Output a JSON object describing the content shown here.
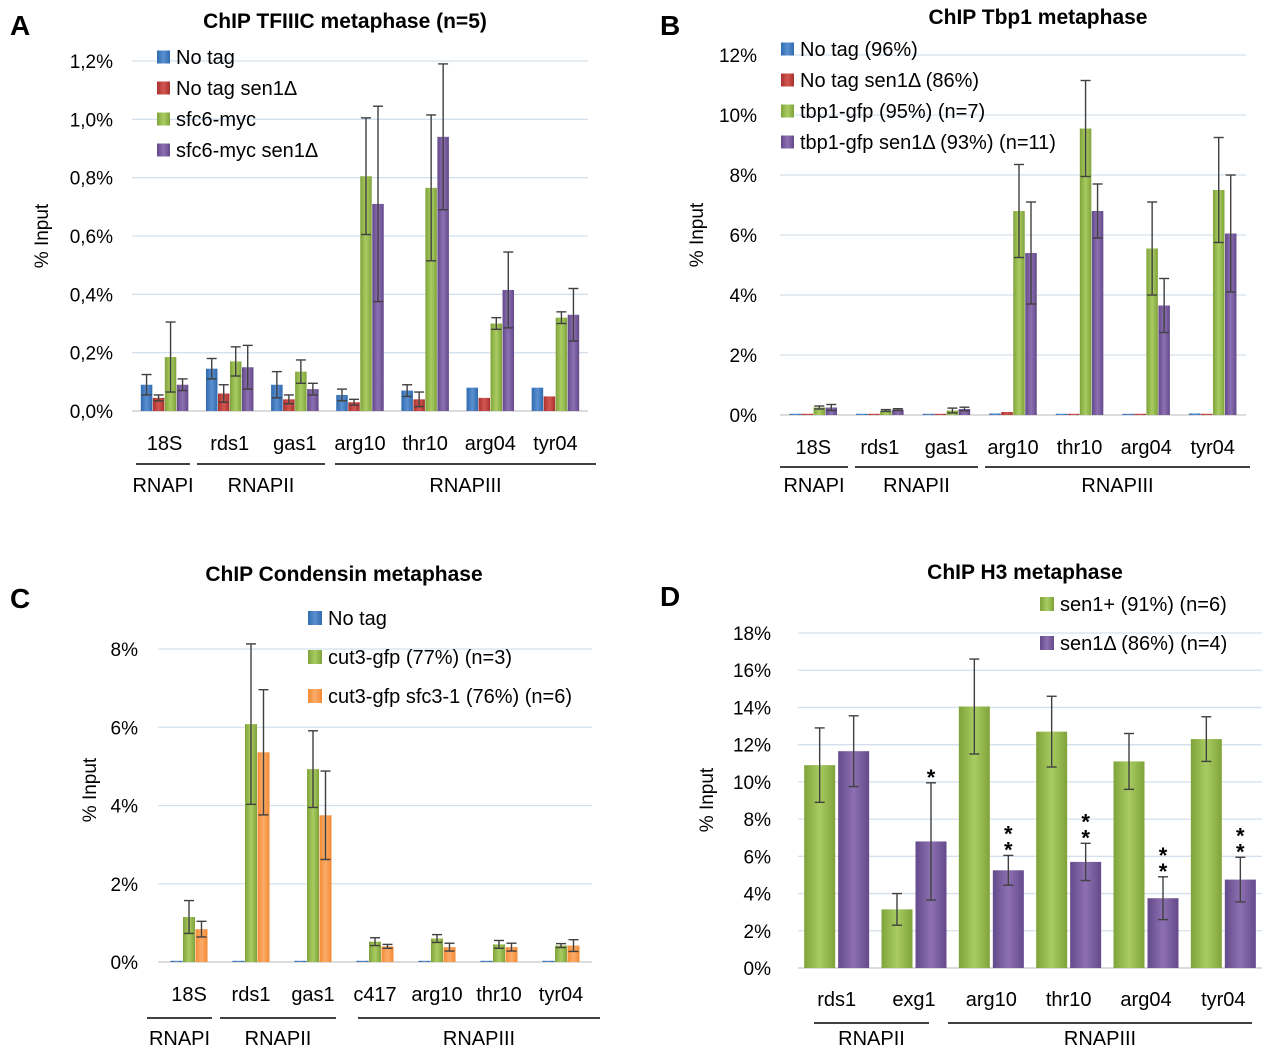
{
  "chart_data": [
    {
      "panel": "A",
      "type": "bar",
      "title": "ChIP TFIIIC metaphase (n=5)",
      "ylabel": "% Input",
      "ylim": [
        0,
        1.2
      ],
      "yticks": [
        "0,0%",
        "0,2%",
        "0,4%",
        "0,6%",
        "0,8%",
        "1,0%",
        "1,2%"
      ],
      "grid": true,
      "legend_position": "top-left",
      "categories": [
        "18S",
        "rds1",
        "gas1",
        "arg10",
        "thr10",
        "arg04",
        "tyr04"
      ],
      "groups": [
        {
          "label": "RNAPI",
          "from": 0,
          "to": 0
        },
        {
          "label": "RNAPII",
          "from": 1,
          "to": 2
        },
        {
          "label": "RNAPIII",
          "from": 3,
          "to": 6
        }
      ],
      "series": [
        {
          "name": "No tag",
          "color": "#4a7ebb",
          "values": [
            0.09,
            0.145,
            0.09,
            0.055,
            0.07,
            0.08,
            0.08
          ],
          "errors": [
            0.035,
            0.035,
            0.045,
            0.02,
            0.02,
            0.0,
            0.0
          ]
        },
        {
          "name": "No tag sen1Δ",
          "color": "#be4b48",
          "values": [
            0.045,
            0.06,
            0.04,
            0.03,
            0.04,
            0.045,
            0.05
          ],
          "errors": [
            0.01,
            0.03,
            0.015,
            0.01,
            0.025,
            0.0,
            0.0
          ]
        },
        {
          "name": "sfc6-myc",
          "color": "#98b954",
          "values": [
            0.185,
            0.17,
            0.135,
            0.805,
            0.765,
            0.3,
            0.32
          ],
          "errors": [
            0.12,
            0.05,
            0.04,
            0.2,
            0.25,
            0.02,
            0.02
          ]
        },
        {
          "name": "sfc6-myc sen1Δ",
          "color": "#7d60a0",
          "values": [
            0.09,
            0.15,
            0.075,
            0.71,
            0.94,
            0.415,
            0.33
          ],
          "errors": [
            0.02,
            0.075,
            0.02,
            0.335,
            0.25,
            0.13,
            0.09
          ]
        }
      ]
    },
    {
      "panel": "B",
      "type": "bar",
      "title": "ChIP Tbp1 metaphase",
      "ylabel": "% Input",
      "ylim": [
        0,
        12
      ],
      "yticks": [
        "0%",
        "2%",
        "4%",
        "6%",
        "8%",
        "10%",
        "12%"
      ],
      "grid": true,
      "legend_position": "top-left",
      "categories": [
        "18S",
        "rds1",
        "gas1",
        "arg10",
        "thr10",
        "arg04",
        "tyr04"
      ],
      "groups": [
        {
          "label": "RNAPI",
          "from": 0,
          "to": 0
        },
        {
          "label": "RNAPII",
          "from": 1,
          "to": 2
        },
        {
          "label": "RNAPIII",
          "from": 3,
          "to": 6
        }
      ],
      "series": [
        {
          "name": "No tag (96%)",
          "color": "#4a7ebb",
          "values": [
            0.02,
            0.03,
            0.03,
            0.05,
            0.02,
            0.02,
            0.05
          ],
          "errors": [
            0,
            0,
            0,
            0,
            0,
            0,
            0
          ]
        },
        {
          "name": "No tag sen1Δ (86%)",
          "color": "#be4b48",
          "values": [
            0.02,
            0.03,
            0.03,
            0.1,
            0.02,
            0.02,
            0.03
          ],
          "errors": [
            0,
            0,
            0,
            0,
            0,
            0,
            0
          ]
        },
        {
          "name": "tbp1-gfp (95%) (n=7)",
          "color": "#98b954",
          "values": [
            0.25,
            0.15,
            0.15,
            6.8,
            9.55,
            5.55,
            7.5
          ],
          "errors": [
            0.05,
            0.03,
            0.08,
            1.55,
            1.6,
            1.55,
            1.75
          ]
        },
        {
          "name": "tbp1-gfp sen1Δ (93%) (n=11)",
          "color": "#7d60a0",
          "values": [
            0.25,
            0.18,
            0.2,
            5.4,
            6.8,
            3.65,
            6.05
          ],
          "errors": [
            0.1,
            0.03,
            0.06,
            1.7,
            0.9,
            0.9,
            1.95
          ]
        }
      ]
    },
    {
      "panel": "C",
      "type": "bar",
      "title": "ChIP Condensin metaphase",
      "ylabel": "% Input",
      "ylim": [
        0,
        8
      ],
      "yticks": [
        "0%",
        "2%",
        "4%",
        "6%",
        "8%"
      ],
      "grid": true,
      "legend_position": "top-right",
      "categories": [
        "18S",
        "rds1",
        "gas1",
        "c417",
        "arg10",
        "thr10",
        "tyr04"
      ],
      "groups": [
        {
          "label": "RNAPI",
          "from": 0,
          "to": 0
        },
        {
          "label": "RNAPII",
          "from": 1,
          "to": 2
        },
        {
          "label": "RNAPIII",
          "from": 3,
          "to": 6
        }
      ],
      "series": [
        {
          "name": "No tag",
          "color": "#4a7ebb",
          "values": [
            0.03,
            0.03,
            0.03,
            0.03,
            0.03,
            0.03,
            0.03
          ],
          "errors": [
            0,
            0,
            0,
            0,
            0,
            0,
            0
          ]
        },
        {
          "name": "cut3-gfp (77%) (n=3)",
          "color": "#98b954",
          "values": [
            1.15,
            6.08,
            4.93,
            0.52,
            0.6,
            0.45,
            0.42
          ],
          "errors": [
            0.42,
            2.05,
            0.98,
            0.1,
            0.1,
            0.1,
            0.05
          ]
        },
        {
          "name": "cut3-gfp sfc3-1 (76%) (n=6)",
          "color": "#f79646",
          "values": [
            0.84,
            5.36,
            3.75,
            0.4,
            0.38,
            0.38,
            0.42
          ],
          "errors": [
            0.2,
            1.6,
            1.13,
            0.05,
            0.1,
            0.1,
            0.15
          ]
        }
      ]
    },
    {
      "panel": "D",
      "type": "bar",
      "title": "ChIP H3 metaphase",
      "ylabel": "% Input",
      "ylim": [
        0,
        18
      ],
      "yticks": [
        "0%",
        "2%",
        "4%",
        "6%",
        "8%",
        "10%",
        "12%",
        "14%",
        "16%",
        "18%"
      ],
      "grid": true,
      "legend_position": "top-right",
      "categories": [
        "rds1",
        "exg1",
        "arg10",
        "thr10",
        "arg04",
        "tyr04"
      ],
      "groups": [
        {
          "label": "RNAPII",
          "from": 0,
          "to": 1
        },
        {
          "label": "RNAPIII",
          "from": 2,
          "to": 5
        }
      ],
      "series": [
        {
          "name": "sen1+ (91%) (n=6)",
          "color": "#98b954",
          "values": [
            10.9,
            3.15,
            14.05,
            12.7,
            11.1,
            12.3
          ],
          "errors": [
            2.0,
            0.85,
            2.55,
            1.9,
            1.5,
            1.2
          ]
        },
        {
          "name": "sen1Δ (86%) (n=4)",
          "color": "#7d60a0",
          "values": [
            11.65,
            6.8,
            5.25,
            5.7,
            3.75,
            4.75
          ],
          "errors": [
            1.9,
            3.15,
            0.8,
            1.0,
            1.15,
            1.2
          ]
        }
      ],
      "significance": [
        "",
        "*",
        "**",
        "**",
        "**",
        "**"
      ]
    }
  ],
  "panels": [
    {
      "letter": "A"
    },
    {
      "letter": "B"
    },
    {
      "letter": "C"
    },
    {
      "letter": "D"
    }
  ]
}
